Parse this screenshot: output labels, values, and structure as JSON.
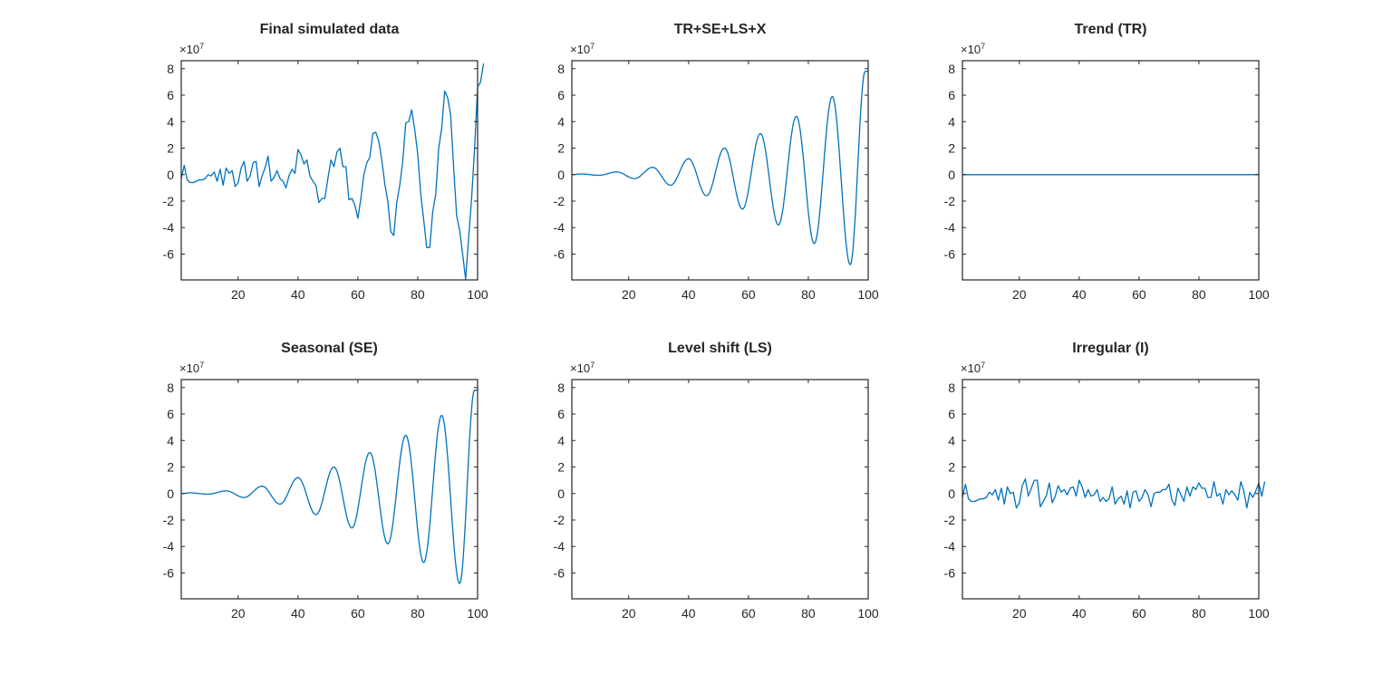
{
  "figure": {
    "background": "#ffffff",
    "line_color": "#0072BD",
    "axis_color": "#262626"
  },
  "chart_data": [
    {
      "type": "line",
      "title": "Final simulated data",
      "xlabel": "",
      "ylabel": "",
      "y_exponent_label": "×10^7",
      "y_exponent": "7",
      "xlim": [
        1,
        100
      ],
      "ylim": [
        -7.95,
        8.6
      ],
      "xticks": [
        20,
        40,
        60,
        80,
        100
      ],
      "yticks": [
        -6,
        -4,
        -2,
        0,
        2,
        4,
        6,
        8
      ],
      "grid": false,
      "series": [
        {
          "name": "Final simulated data",
          "values": [
            -0.3,
            0.7,
            -0.4,
            -0.6,
            -0.6,
            -0.5,
            -0.4,
            -0.4,
            -0.3,
            0.0,
            -0.1,
            0.2,
            -0.5,
            0.4,
            -0.8,
            0.5,
            0.1,
            0.3,
            -0.9,
            -0.6,
            0.5,
            1.0,
            -0.5,
            -0.1,
            0.9,
            1.0,
            -0.9,
            -0.1,
            0.5,
            1.4,
            -0.5,
            -0.2,
            0.3,
            -0.3,
            -0.5,
            -1.0,
            -0.1,
            0.4,
            0.1,
            1.9,
            1.5,
            0.8,
            1.1,
            -0.1,
            -0.5,
            -0.8,
            -2.1,
            -1.8,
            -1.8,
            -0.3,
            1.1,
            0.6,
            1.7,
            2.0,
            0.6,
            0.6,
            -1.9,
            -1.8,
            -2.3,
            -3.3,
            -1.8,
            0.0,
            0.9,
            1.3,
            3.1,
            3.2,
            2.5,
            1.1,
            -0.7,
            -2.0,
            -4.3,
            -4.6,
            -2.1,
            -0.8,
            1.0,
            3.9,
            4.0,
            4.9,
            3.4,
            1.6,
            -1.4,
            -3.4,
            -5.5,
            -5.5,
            -2.8,
            -1.5,
            2.0,
            3.5,
            6.3,
            5.8,
            4.5,
            0.5,
            -3.1,
            -4.2,
            -6.0,
            -7.9,
            -4.8,
            -1.8,
            2.0,
            6.6,
            7.0,
            8.4
          ]
        }
      ]
    },
    {
      "type": "line",
      "title": "TR+SE+LS+X",
      "xlabel": "",
      "ylabel": "",
      "y_exponent_label": "×10^7",
      "y_exponent": "7",
      "xlim": [
        1,
        100
      ],
      "ylim": [
        -7.95,
        8.6
      ],
      "xticks": [
        20,
        40,
        60,
        80,
        100
      ],
      "yticks": [
        -6,
        -4,
        -2,
        0,
        2,
        4,
        6,
        8
      ],
      "grid": false,
      "series": [
        {
          "name": "TR+SE+LS+X",
          "description": "growing-amplitude sinusoid, period ~12",
          "peaks": [
            [
              4,
              0.05
            ],
            [
              16,
              0.2
            ],
            [
              28,
              0.55
            ],
            [
              40,
              1.2
            ],
            [
              52,
              2.0
            ],
            [
              64,
              3.1
            ],
            [
              76,
              4.4
            ],
            [
              88,
              5.9
            ],
            [
              99,
              7.8
            ]
          ],
          "troughs": [
            [
              10,
              -0.05
            ],
            [
              22,
              -0.3
            ],
            [
              34,
              -0.8
            ],
            [
              46,
              -1.6
            ],
            [
              58,
              -2.6
            ],
            [
              70,
              -3.8
            ],
            [
              82,
              -5.2
            ],
            [
              94,
              -6.8
            ]
          ]
        }
      ]
    },
    {
      "type": "line",
      "title": "Trend (TR)",
      "xlabel": "",
      "ylabel": "",
      "y_exponent_label": "×10^7",
      "y_exponent": "7",
      "xlim": [
        1,
        100
      ],
      "ylim": [
        -7.95,
        8.6
      ],
      "xticks": [
        20,
        40,
        60,
        80,
        100
      ],
      "yticks": [
        -6,
        -4,
        -2,
        0,
        2,
        4,
        6,
        8
      ],
      "grid": false,
      "series": [
        {
          "name": "Trend (TR)",
          "description": "constant zero",
          "values_const": 0
        }
      ]
    },
    {
      "type": "line",
      "title": "Seasonal (SE)",
      "xlabel": "",
      "ylabel": "",
      "y_exponent_label": "×10^7",
      "y_exponent": "7",
      "xlim": [
        1,
        100
      ],
      "ylim": [
        -7.95,
        8.6
      ],
      "xticks": [
        20,
        40,
        60,
        80,
        100
      ],
      "yticks": [
        -6,
        -4,
        -2,
        0,
        2,
        4,
        6,
        8
      ],
      "grid": false,
      "series": [
        {
          "name": "Seasonal (SE)",
          "description": "identical to TR+SE+LS+X",
          "peaks": [
            [
              4,
              0.05
            ],
            [
              16,
              0.2
            ],
            [
              28,
              0.55
            ],
            [
              40,
              1.2
            ],
            [
              52,
              2.0
            ],
            [
              64,
              3.1
            ],
            [
              76,
              4.4
            ],
            [
              88,
              5.9
            ],
            [
              99,
              7.8
            ]
          ],
          "troughs": [
            [
              10,
              -0.05
            ],
            [
              22,
              -0.3
            ],
            [
              34,
              -0.8
            ],
            [
              46,
              -1.6
            ],
            [
              58,
              -2.6
            ],
            [
              70,
              -3.8
            ],
            [
              82,
              -5.2
            ],
            [
              94,
              -6.8
            ]
          ]
        }
      ]
    },
    {
      "type": "line",
      "title": "Level shift (LS)",
      "xlabel": "",
      "ylabel": "",
      "y_exponent_label": "×10^7",
      "y_exponent": "7",
      "xlim": [
        1,
        100
      ],
      "ylim": [
        -7.95,
        8.6
      ],
      "xticks": [
        20,
        40,
        60,
        80,
        100
      ],
      "yticks": [
        -6,
        -4,
        -2,
        0,
        2,
        4,
        6,
        8
      ],
      "grid": false,
      "series": []
    },
    {
      "type": "line",
      "title": "Irregular (I)",
      "xlabel": "",
      "ylabel": "",
      "y_exponent_label": "×10^7",
      "y_exponent": "7",
      "xlim": [
        1,
        100
      ],
      "ylim": [
        -7.95,
        8.6
      ],
      "xticks": [
        20,
        40,
        60,
        80,
        100
      ],
      "yticks": [
        -6,
        -4,
        -2,
        0,
        2,
        4,
        6,
        8
      ],
      "grid": false,
      "series": [
        {
          "name": "Irregular (I)",
          "values": [
            -0.3,
            0.7,
            -0.4,
            -0.6,
            -0.6,
            -0.5,
            -0.4,
            -0.4,
            -0.3,
            0.1,
            -0.1,
            0.3,
            -0.5,
            0.4,
            -0.8,
            0.5,
            0.0,
            0.1,
            -1.1,
            -0.7,
            0.6,
            1.1,
            -0.2,
            0.4,
            1.0,
            1.0,
            -1.0,
            -0.6,
            -0.2,
            0.8,
            -0.7,
            -0.2,
            0.6,
            0.1,
            0.3,
            -0.1,
            0.4,
            0.5,
            -0.2,
            1.0,
            0.5,
            -0.3,
            0.3,
            -0.2,
            -0.1,
            0.3,
            -0.6,
            -0.3,
            -0.6,
            -0.4,
            0.5,
            -0.8,
            -0.4,
            -0.2,
            -0.8,
            0.2,
            -1.1,
            0.1,
            0.2,
            -0.6,
            -0.3,
            0.3,
            -0.1,
            -1.0,
            0.0,
            0.1,
            0.1,
            0.3,
            0.3,
            0.7,
            -0.5,
            -0.9,
            0.4,
            -0.1,
            -0.6,
            0.5,
            -0.2,
            0.5,
            0.3,
            0.8,
            0.4,
            0.4,
            -0.3,
            -0.3,
            0.9,
            -0.2,
            0.0,
            -0.8,
            0.3,
            -0.1,
            0.2,
            -0.1,
            -0.5,
            0.9,
            0.2,
            -1.1,
            0.1,
            -0.3,
            0.2,
            0.8,
            -0.2,
            0.9
          ]
        }
      ]
    }
  ]
}
